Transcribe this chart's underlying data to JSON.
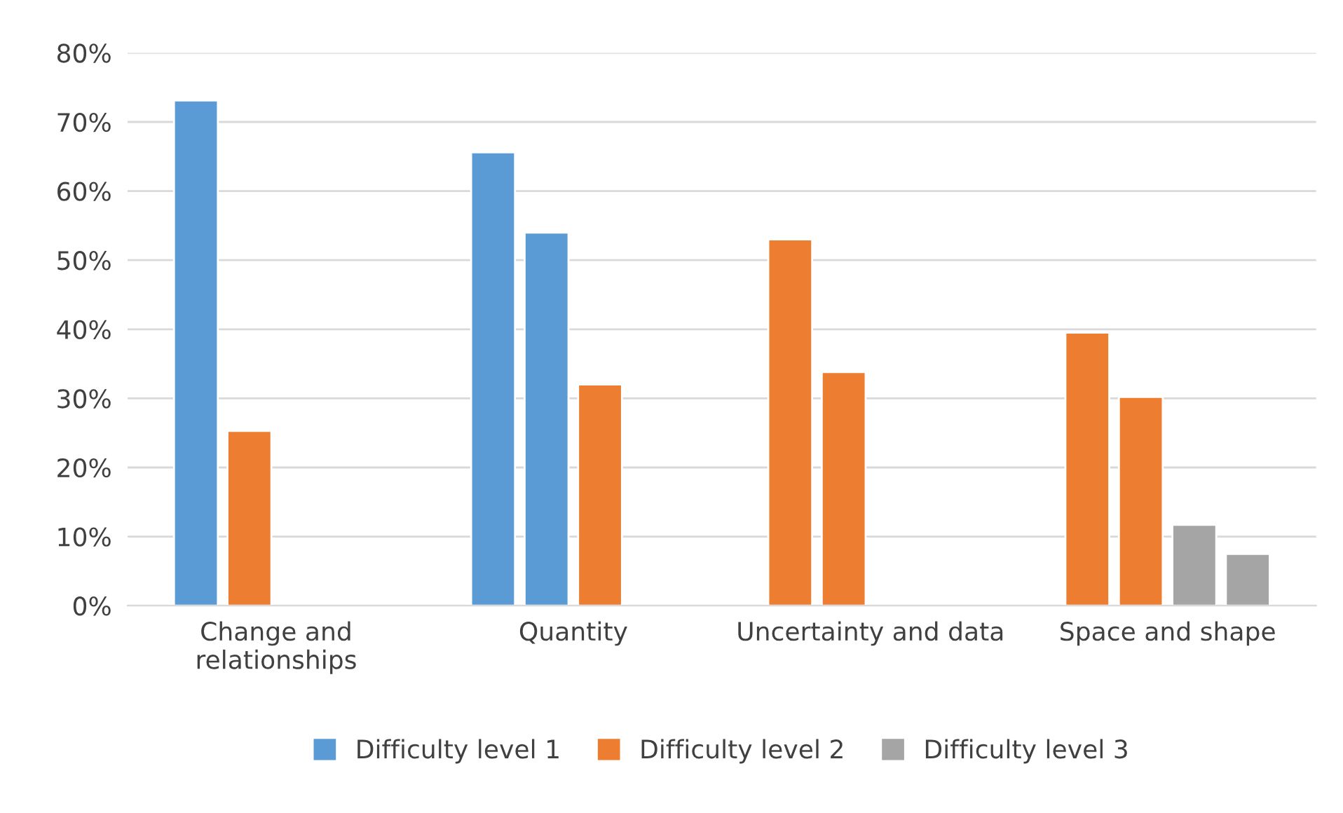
{
  "chart_data": {
    "type": "bar",
    "categories": [
      "Change and\nrelationships",
      "Quantity",
      "Uncertainty and data",
      "Space and shape"
    ],
    "series": [
      {
        "colors": [
          "#5b9bd5",
          "#5b9bd5",
          "#ed7d31",
          "#ed7d31"
        ],
        "values": [
          73.1,
          65.6,
          53.0,
          39.5
        ]
      },
      {
        "colors": [
          "#ed7d31",
          "#5b9bd5",
          "#ed7d31",
          "#ed7d31"
        ],
        "values": [
          25.3,
          54.0,
          33.8,
          30.2
        ]
      },
      {
        "colors": [
          null,
          "#ed7d31",
          null,
          "#a5a5a5"
        ],
        "values": [
          null,
          32.0,
          null,
          11.7
        ]
      },
      {
        "colors": [
          null,
          null,
          null,
          "#a5a5a5"
        ],
        "values": [
          null,
          null,
          null,
          7.5
        ]
      },
      {
        "name": "Difficulty level 1",
        "color": "#5b9bd5",
        "values": [
          null,
          null,
          null,
          null
        ]
      },
      {
        "name": "Difficulty level 2",
        "color": "#ed7d31",
        "values": [
          null,
          null,
          null,
          null
        ]
      },
      {
        "name": "Difficulty level 3",
        "color": "#a5a5a5",
        "values": [
          null,
          null,
          null,
          null
        ]
      }
    ],
    "ylim": [
      0,
      80
    ],
    "yticks": [
      {
        "value": 0,
        "label": "0%"
      },
      {
        "value": 10,
        "label": "10%"
      },
      {
        "value": 20,
        "label": "20%"
      },
      {
        "value": 30,
        "label": "30%"
      },
      {
        "value": 40,
        "label": "40%"
      },
      {
        "value": 50,
        "label": "50%"
      },
      {
        "value": 60,
        "label": "60%"
      },
      {
        "value": 70,
        "label": "70%"
      },
      {
        "value": 80,
        "label": "80%"
      }
    ],
    "grid": "y",
    "legend": "bottom"
  }
}
